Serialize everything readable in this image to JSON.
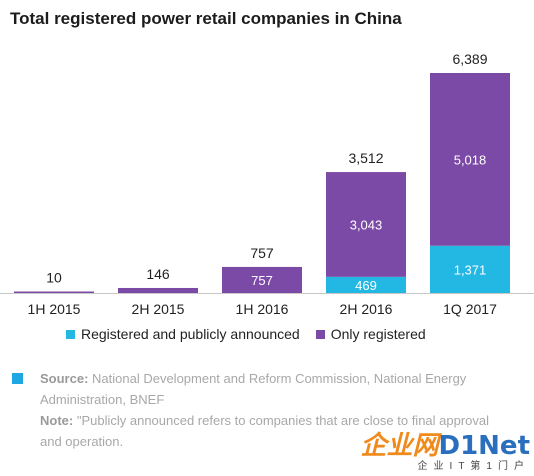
{
  "title": "Total registered power retail companies in China",
  "colors": {
    "registered_and_announced": "#23b8e3",
    "only_registered": "#7b4aa6",
    "source_marker": "#1ea7e0"
  },
  "legend": {
    "items": [
      {
        "label": "Registered and publicly announced",
        "color": "#23b8e3"
      },
      {
        "label": "Only registered",
        "color": "#7b4aa6"
      }
    ]
  },
  "chart_data": {
    "type": "bar",
    "stacked": true,
    "title": "Total registered power retail companies in China",
    "categories": [
      "1H 2015",
      "2H 2015",
      "1H 2016",
      "2H 2016",
      "1Q 2017"
    ],
    "series": [
      {
        "name": "Registered and publicly announced",
        "values": [
          0,
          0,
          0,
          469,
          1371
        ]
      },
      {
        "name": "Only registered",
        "values": [
          10,
          146,
          757,
          3043,
          5018
        ]
      }
    ],
    "totals": [
      10,
      146,
      757,
      3512,
      6389
    ],
    "total_labels": [
      "10",
      "146",
      "757",
      "3,512",
      "6,389"
    ],
    "segment_labels": {
      "Registered and publicly announced": [
        null,
        null,
        null,
        "469",
        "1,371"
      ],
      "Only registered": [
        null,
        null,
        "757",
        "3,043",
        "5,018"
      ]
    },
    "xlabel": "",
    "ylabel": "",
    "ylim": [
      0,
      6389
    ],
    "grid": false,
    "legend_position": "bottom"
  },
  "source": {
    "source_label": "Source:",
    "source_text": " National Development and Reform Commission, National Energy Administration, BNEF",
    "note_label": "Note:",
    "note_text": " \"Publicly announced refers to companies that are close to final approval and operation."
  },
  "watermark": {
    "logo_cn": "企业网",
    "logo_en": "D1Net",
    "subtitle": "企业IT第1门户"
  }
}
